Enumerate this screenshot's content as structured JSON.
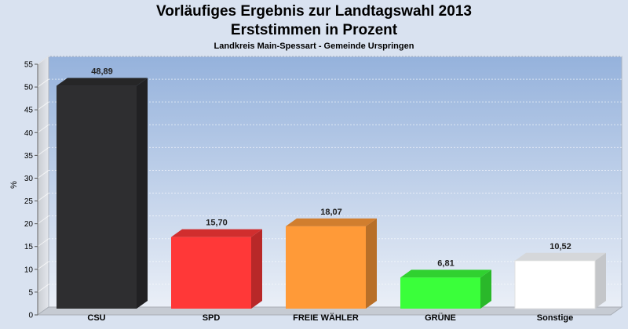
{
  "header": {
    "title": "Vorläufiges Ergebnis zur Landtagswahl 2013",
    "subtitle": "Erststimmen in Prozent",
    "region": "Landkreis Main-Spessart - Gemeinde Urspringen"
  },
  "chart_data": {
    "type": "bar",
    "categories": [
      "CSU",
      "SPD",
      "FREIE WÄHLER",
      "GRÜNE",
      "Sonstige"
    ],
    "values": [
      48.89,
      15.7,
      18.07,
      6.81,
      10.52
    ],
    "value_labels": [
      "48,89",
      "15,70",
      "18,07",
      "6,81",
      "10,52"
    ],
    "colors": [
      "#2e2e30",
      "#ff3838",
      "#ff9a38",
      "#3aff3a",
      "#ffffff"
    ],
    "ylabel": "%",
    "ylim": [
      0,
      55
    ],
    "yticks": [
      0,
      5,
      10,
      15,
      20,
      25,
      30,
      35,
      40,
      45,
      50,
      55
    ],
    "grid": true,
    "legend": "none",
    "three_d": true
  }
}
